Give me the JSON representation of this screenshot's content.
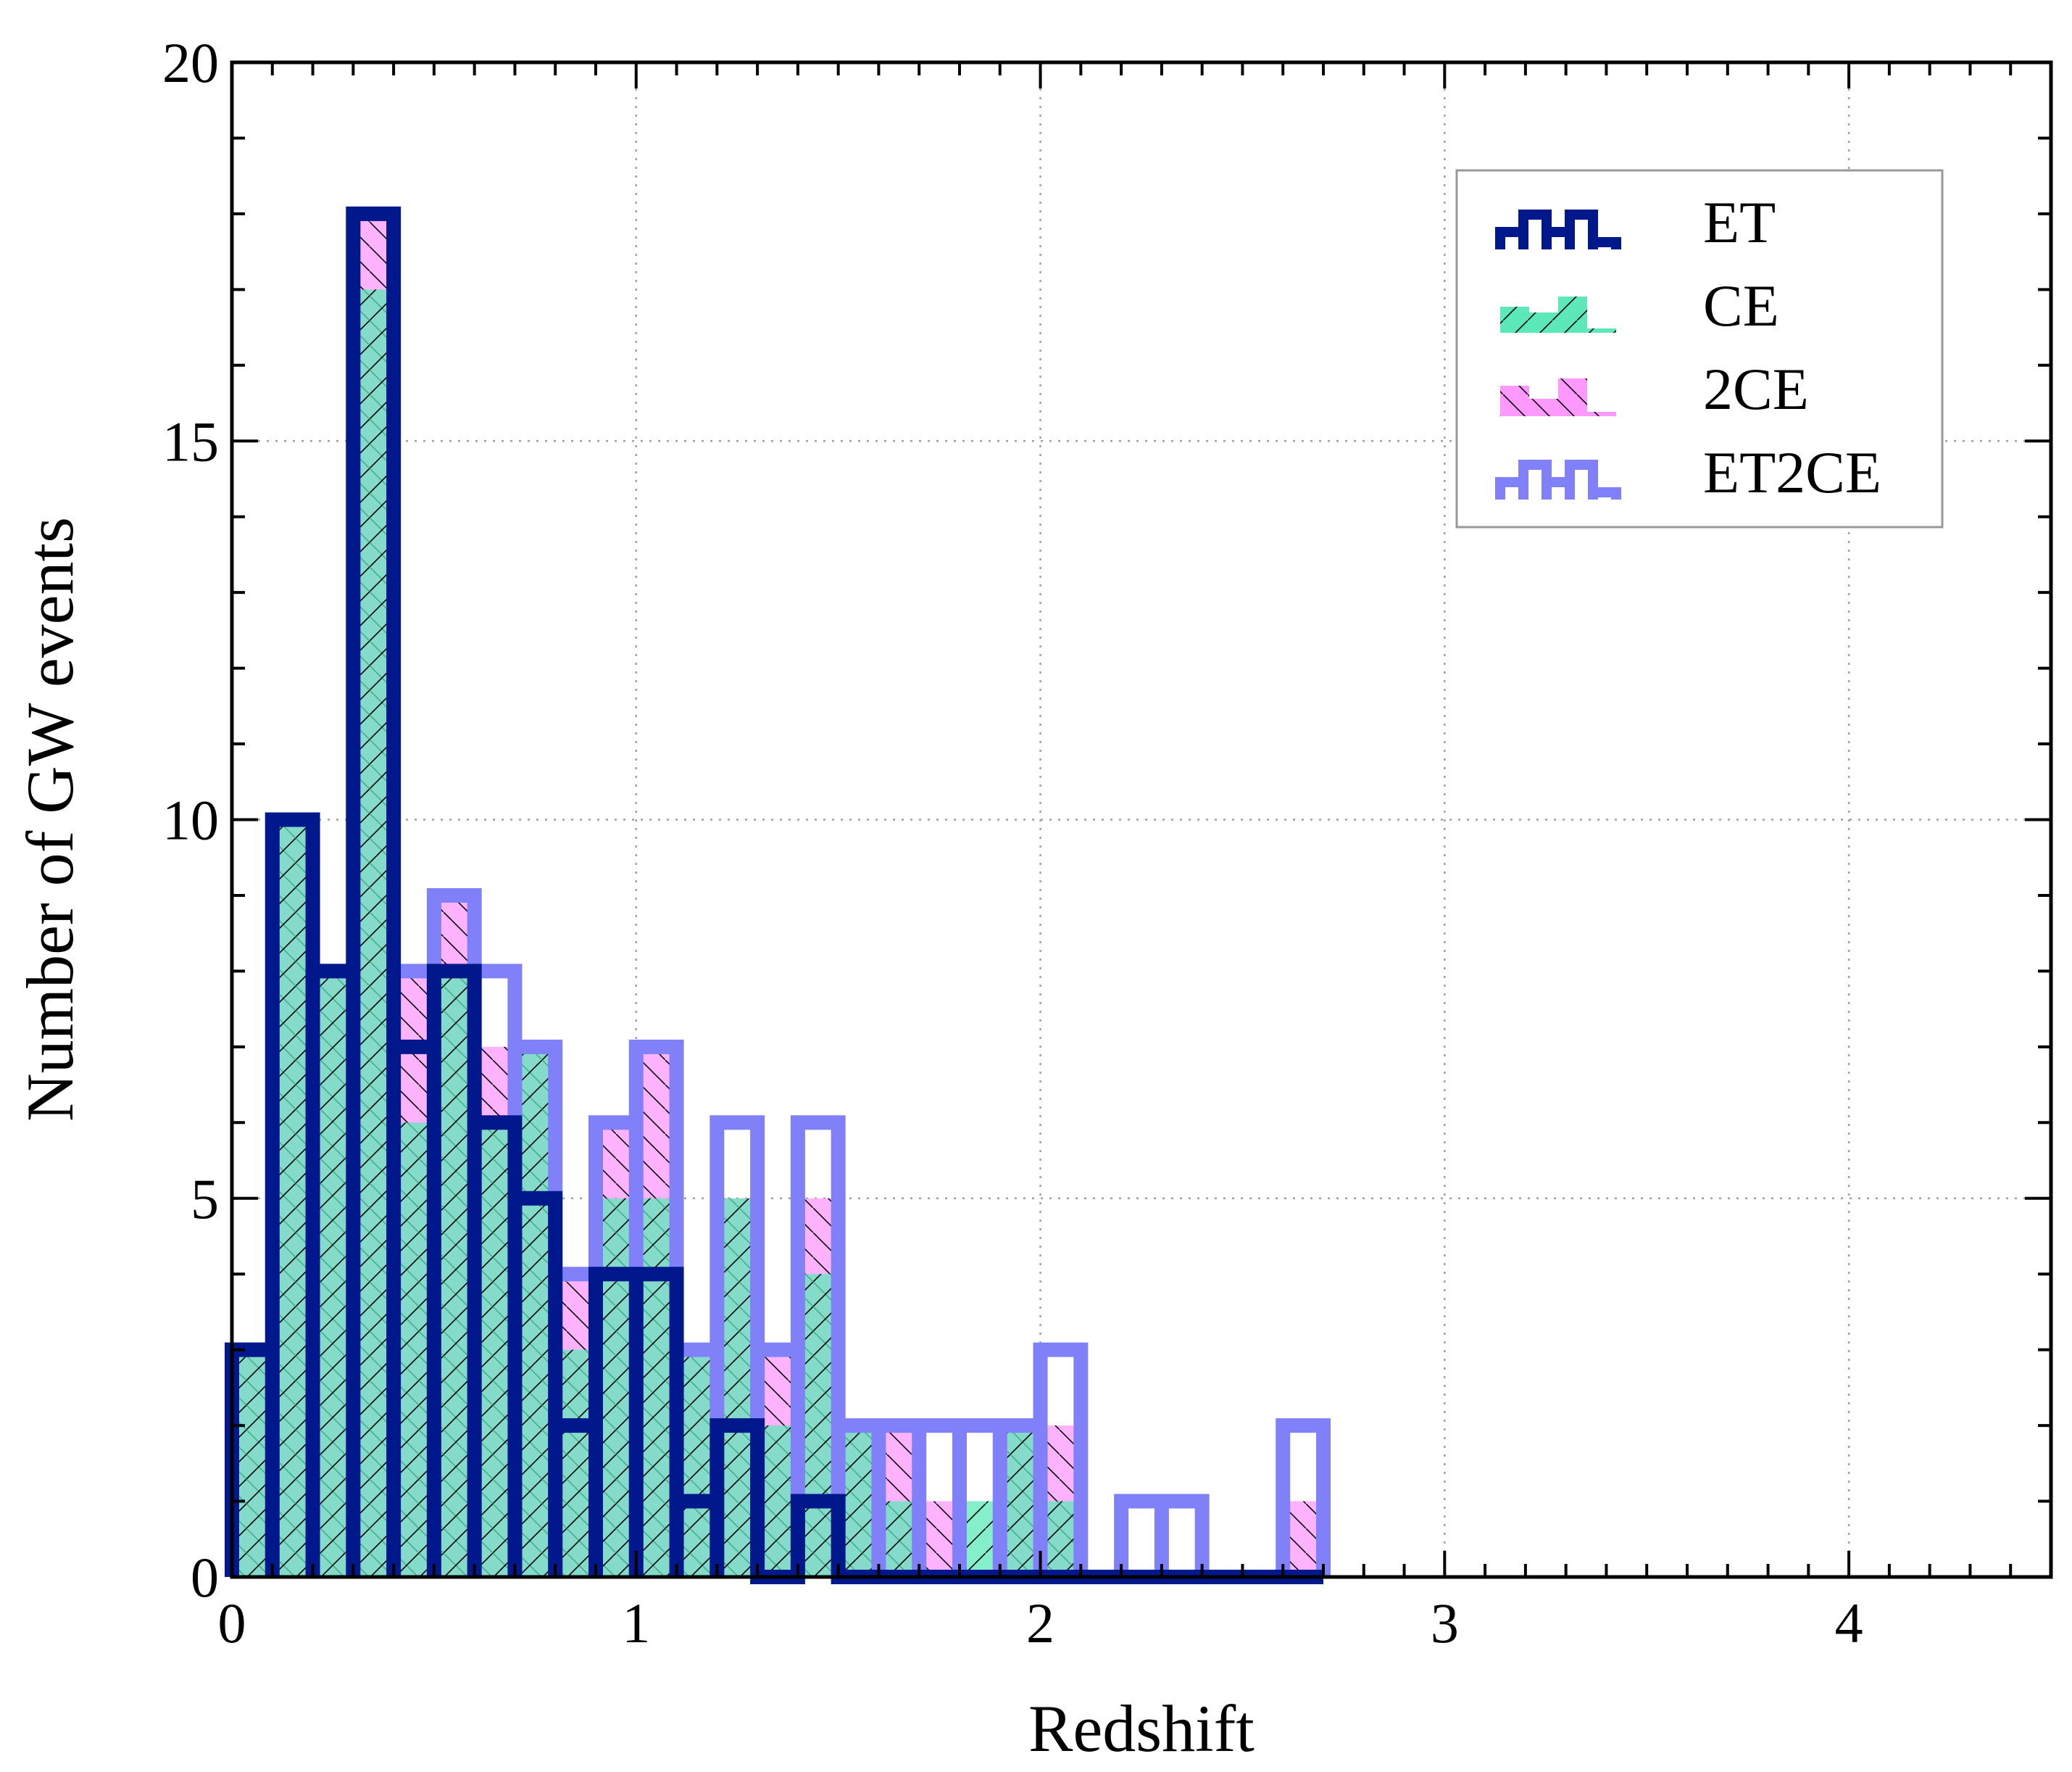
{
  "chart_data": {
    "type": "bar",
    "subtype": "histogram",
    "title": "",
    "xlabel": "Redshift",
    "ylabel": "Number of GW events",
    "xlim": [
      0,
      4.5
    ],
    "ylim": [
      0,
      20
    ],
    "bin_width": 0.1,
    "x_ticks": [
      0,
      1,
      2,
      3,
      4
    ],
    "x_tick_labels": [
      "0",
      "1",
      "2",
      "3",
      "4"
    ],
    "y_ticks": [
      0,
      5,
      10,
      15,
      20
    ],
    "y_tick_labels": [
      "0",
      "5",
      "10",
      "15",
      "20"
    ],
    "grid": true,
    "legend_position": "top-right",
    "bin_edges": [
      0.0,
      0.1,
      0.2,
      0.3,
      0.4,
      0.5,
      0.6,
      0.7,
      0.8,
      0.9,
      1.0,
      1.1,
      1.2,
      1.3,
      1.4,
      1.5,
      1.6,
      1.7,
      1.8,
      1.9,
      2.0,
      2.1,
      2.2,
      2.3,
      2.4,
      2.5,
      2.6,
      2.7
    ],
    "series": [
      {
        "name": "ET2CE",
        "style": "step",
        "color": "#8080f8",
        "counts": [
          3,
          10,
          8,
          18,
          8,
          9,
          8,
          7,
          4,
          6,
          7,
          3,
          6,
          3,
          6,
          2,
          2,
          2,
          2,
          2,
          3,
          0,
          1,
          1,
          0,
          0,
          2
        ]
      },
      {
        "name": "2CE",
        "style": "filled-hatch",
        "hatch": "backslash",
        "color": "#ff99ff",
        "counts": [
          3,
          10,
          8,
          18,
          8,
          9,
          7,
          7,
          4,
          6,
          7,
          3,
          5,
          3,
          5,
          2,
          2,
          1,
          0,
          2,
          2,
          0,
          0,
          0,
          0,
          0,
          1
        ]
      },
      {
        "name": "CE",
        "style": "filled-hatch",
        "hatch": "slash",
        "color": "#5ce8b8",
        "counts": [
          3,
          10,
          8,
          17,
          6,
          8,
          6,
          7,
          3,
          5,
          5,
          3,
          5,
          2,
          4,
          2,
          1,
          0,
          1,
          2,
          1,
          0,
          0,
          0,
          0,
          0,
          0
        ]
      },
      {
        "name": "ET",
        "style": "step",
        "color": "#00188c",
        "counts": [
          3,
          10,
          8,
          18,
          7,
          8,
          6,
          5,
          2,
          4,
          4,
          1,
          2,
          0,
          1,
          0,
          0,
          0,
          0,
          0,
          0,
          0,
          0,
          0,
          0,
          0,
          0
        ]
      }
    ],
    "legend_order": [
      "ET",
      "CE",
      "2CE",
      "ET2CE"
    ]
  }
}
